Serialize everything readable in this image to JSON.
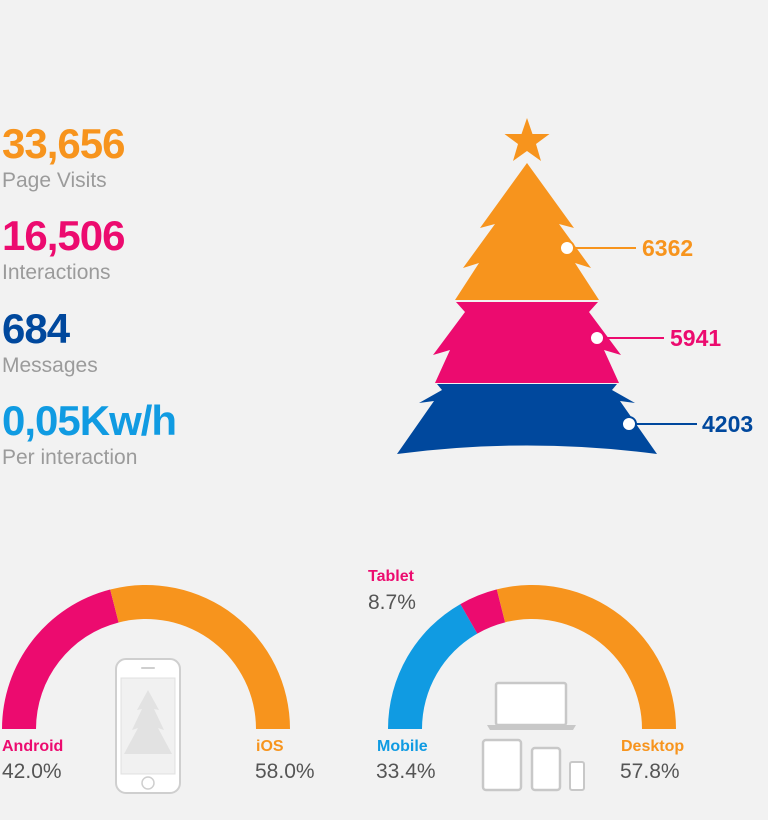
{
  "stats": [
    {
      "value": "33,656",
      "label": "Page Visits",
      "color": "#f7941d"
    },
    {
      "value": "16,506",
      "label": "Interactions",
      "color": "#ec0b6f"
    },
    {
      "value": "684",
      "label": "Messages",
      "color": "#00489d"
    },
    {
      "value": "0,05Kw/h",
      "label": "Per interaction",
      "color": "#109be2"
    }
  ],
  "colors": {
    "orange": "#f7941d",
    "pink": "#ec0b6f",
    "navy": "#00489d",
    "blue": "#109be2",
    "grey": "#9b9b9b",
    "icon": "#c8c8c8"
  },
  "chart_data": [
    {
      "type": "funnel",
      "title": "",
      "series": [
        {
          "name": "",
          "value": 6362,
          "label": "6362",
          "color": "#f7941d"
        },
        {
          "name": "",
          "value": 5941,
          "label": "5941",
          "color": "#ec0b6f"
        },
        {
          "name": "",
          "value": 4203,
          "label": "4203",
          "color": "#00489d"
        }
      ]
    },
    {
      "type": "pie",
      "title": "",
      "shape": "semi-donut",
      "slices": [
        {
          "name": "Android",
          "value": 42.0,
          "label": "42.0%",
          "color": "#ec0b6f"
        },
        {
          "name": "iOS",
          "value": 58.0,
          "label": "58.0%",
          "color": "#f7941d"
        }
      ]
    },
    {
      "type": "pie",
      "title": "",
      "shape": "semi-donut",
      "slices": [
        {
          "name": "Mobile",
          "value": 33.4,
          "label": "33.4%",
          "color": "#109be2"
        },
        {
          "name": "Tablet",
          "value": 8.7,
          "label": "8.7%",
          "color": "#ec0b6f"
        },
        {
          "name": "Desktop",
          "value": 57.8,
          "label": "57.8%",
          "color": "#f7941d"
        }
      ]
    }
  ]
}
